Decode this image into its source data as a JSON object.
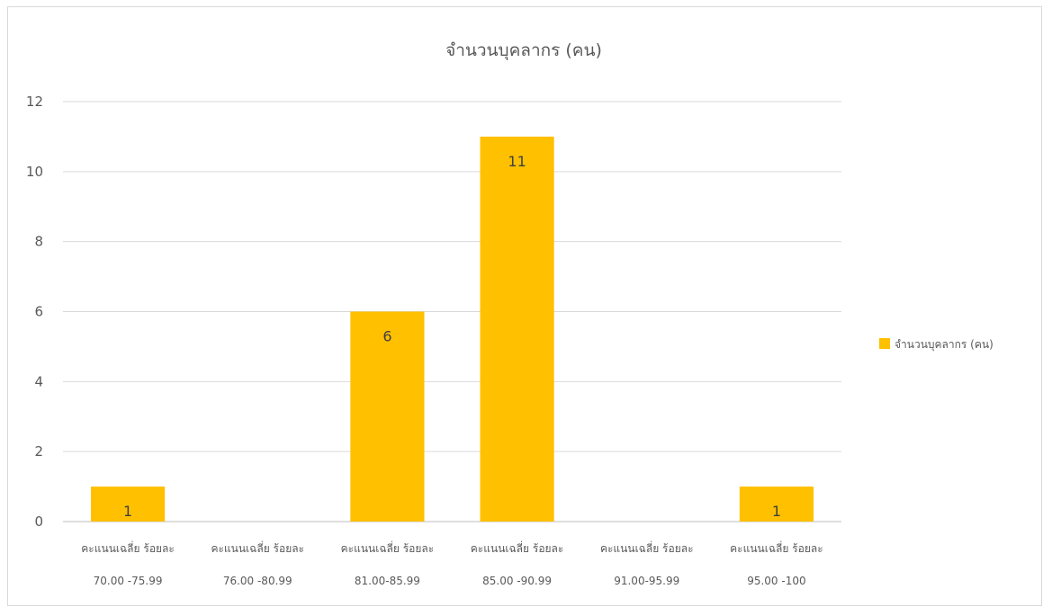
{
  "chart_data": {
    "type": "bar",
    "title": "จำนวนบุคลากร (คน)",
    "categories": [
      [
        "คะแนนเฉลี่ย ร้อยละ",
        "70.00 -75.99"
      ],
      [
        "คะแนนเฉลี่ย ร้อยละ",
        "76.00 -80.99"
      ],
      [
        "คะแนนเฉลี่ย ร้อยละ",
        "81.00-85.99"
      ],
      [
        "คะแนนเฉลี่ย ร้อยละ",
        "85.00 -90.99"
      ],
      [
        "คะแนนเฉลี่ย ร้อยละ",
        "91.00-95.99"
      ],
      [
        "คะแนนเฉลี่ย ร้อยละ",
        "95.00 -100"
      ]
    ],
    "series": [
      {
        "name": "จำนวนบุคลากร (คน)",
        "values": [
          1,
          0,
          6,
          11,
          0,
          1
        ],
        "data_labels": [
          "1",
          "",
          "6",
          "11",
          "",
          "1"
        ],
        "color": "#FFC000"
      }
    ],
    "ylim": [
      0,
      12
    ],
    "yticks": [
      0,
      2,
      4,
      6,
      8,
      10,
      12
    ],
    "grid": true,
    "legend_position": "right",
    "xlabel": "",
    "ylabel": ""
  }
}
